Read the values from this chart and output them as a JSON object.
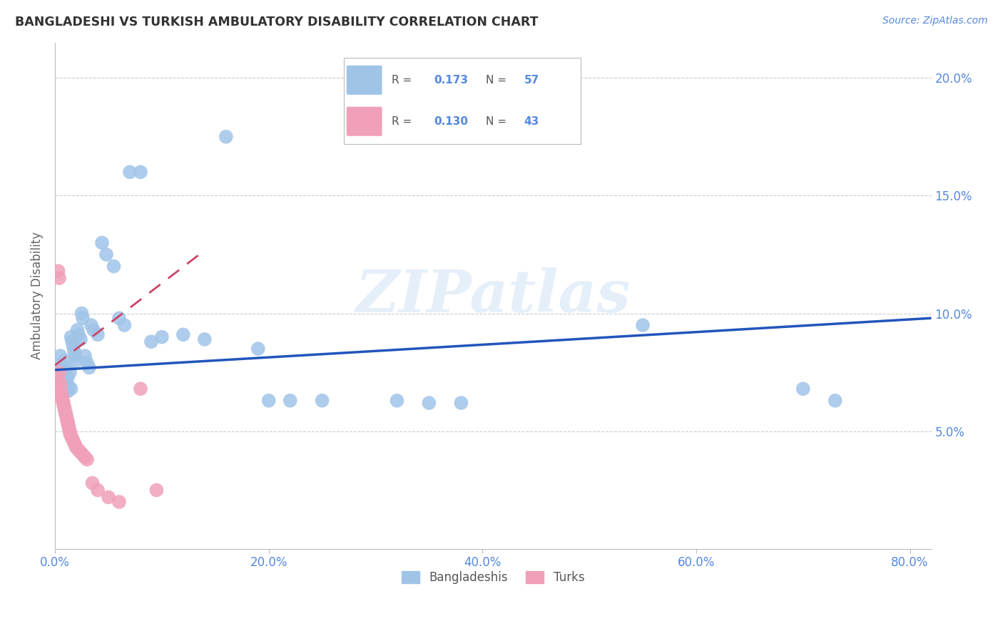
{
  "title": "BANGLADESHI VS TURKISH AMBULATORY DISABILITY CORRELATION CHART",
  "source": "Source: ZipAtlas.com",
  "ylabel": "Ambulatory Disability",
  "bangladeshi_color": "#a0c4e8",
  "turkish_color": "#f0a0b8",
  "bangladeshi_line_color": "#2255bb",
  "turkish_line_color": "#cc4466",
  "bg_color": "#ffffff",
  "grid_color": "#cccccc",
  "axis_color": "#bbbbbb",
  "title_color": "#333333",
  "ylabel_color": "#666666",
  "tick_color": "#5588dd",
  "r_bangladeshi": 0.173,
  "n_bangladeshi": 57,
  "r_turkish": 0.13,
  "n_turkish": 43,
  "legend_label1": "Bangladeshis",
  "legend_label2": "Turks",
  "xlim": [
    0.0,
    0.82
  ],
  "ylim": [
    0.0,
    0.215
  ],
  "bd_line_x": [
    0.0,
    0.82
  ],
  "bd_line_y": [
    0.076,
    0.098
  ],
  "tr_line_x": [
    0.0,
    0.135
  ],
  "tr_line_y": [
    0.078,
    0.125
  ],
  "bd_x": [
    0.003,
    0.004,
    0.005,
    0.005,
    0.006,
    0.007,
    0.007,
    0.008,
    0.009,
    0.009,
    0.01,
    0.01,
    0.011,
    0.012,
    0.012,
    0.013,
    0.014,
    0.015,
    0.015,
    0.016,
    0.017,
    0.018,
    0.019,
    0.02,
    0.021,
    0.022,
    0.024,
    0.025,
    0.026,
    0.028,
    0.03,
    0.032,
    0.034,
    0.036,
    0.04,
    0.044,
    0.048,
    0.055,
    0.06,
    0.065,
    0.07,
    0.08,
    0.09,
    0.1,
    0.12,
    0.14,
    0.16,
    0.19,
    0.2,
    0.22,
    0.25,
    0.32,
    0.35,
    0.38,
    0.55,
    0.7,
    0.73
  ],
  "bd_y": [
    0.075,
    0.078,
    0.072,
    0.082,
    0.074,
    0.073,
    0.076,
    0.071,
    0.069,
    0.08,
    0.068,
    0.077,
    0.07,
    0.067,
    0.073,
    0.069,
    0.075,
    0.068,
    0.09,
    0.088,
    0.086,
    0.084,
    0.082,
    0.08,
    0.093,
    0.091,
    0.089,
    0.1,
    0.098,
    0.082,
    0.079,
    0.077,
    0.095,
    0.093,
    0.091,
    0.13,
    0.125,
    0.12,
    0.098,
    0.095,
    0.16,
    0.16,
    0.088,
    0.09,
    0.091,
    0.089,
    0.175,
    0.085,
    0.063,
    0.063,
    0.063,
    0.063,
    0.062,
    0.062,
    0.095,
    0.068,
    0.063
  ],
  "tr_x": [
    0.003,
    0.003,
    0.004,
    0.004,
    0.005,
    0.005,
    0.005,
    0.005,
    0.006,
    0.006,
    0.007,
    0.007,
    0.008,
    0.008,
    0.009,
    0.009,
    0.01,
    0.01,
    0.011,
    0.011,
    0.012,
    0.012,
    0.013,
    0.013,
    0.014,
    0.014,
    0.015,
    0.016,
    0.017,
    0.018,
    0.019,
    0.02,
    0.022,
    0.024,
    0.026,
    0.028,
    0.03,
    0.035,
    0.04,
    0.05,
    0.06,
    0.08,
    0.095
  ],
  "tr_y": [
    0.072,
    0.118,
    0.075,
    0.115,
    0.07,
    0.069,
    0.068,
    0.067,
    0.066,
    0.065,
    0.064,
    0.063,
    0.062,
    0.061,
    0.06,
    0.059,
    0.058,
    0.057,
    0.056,
    0.055,
    0.054,
    0.053,
    0.052,
    0.051,
    0.05,
    0.049,
    0.048,
    0.047,
    0.046,
    0.045,
    0.044,
    0.043,
    0.042,
    0.041,
    0.04,
    0.039,
    0.038,
    0.028,
    0.025,
    0.022,
    0.02,
    0.068,
    0.025
  ]
}
